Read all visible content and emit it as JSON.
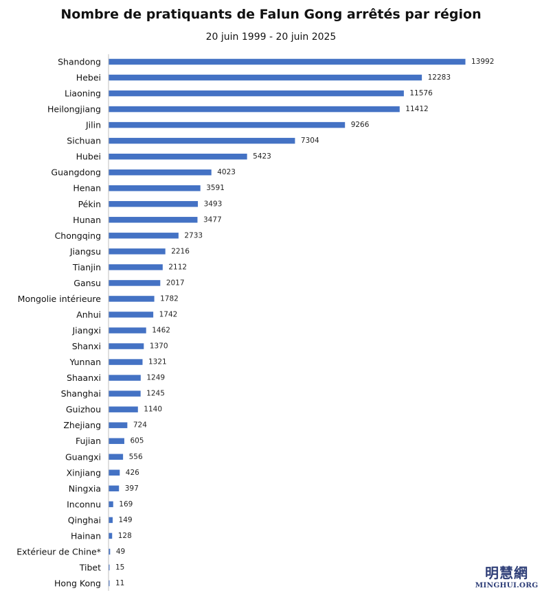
{
  "chart_data": {
    "type": "bar",
    "orientation": "horizontal",
    "title": "Nombre de pratiquants de Falun Gong arrêtés par région",
    "subtitle": "20 juin  1999 - 20 juin  2025",
    "categories": [
      "Shandong",
      "Hebei",
      "Liaoning",
      "Heilongjiang",
      "Jilin",
      "Sichuan",
      "Hubei",
      "Guangdong",
      "Henan",
      "Pékin",
      "Hunan",
      "Chongqing",
      "Jiangsu",
      "Tianjin",
      "Gansu",
      "Mongolie intérieure",
      "Anhui",
      "Jiangxi",
      "Shanxi",
      "Yunnan",
      "Shaanxi",
      "Shanghai",
      "Guizhou",
      "Zhejiang",
      "Fujian",
      "Guangxi",
      "Xinjiang",
      "Ningxia",
      "Inconnu",
      "Qinghai",
      "Hainan",
      "Extérieur de Chine*",
      "Tibet",
      "Hong Kong"
    ],
    "values": [
      13992,
      12283,
      11576,
      11412,
      9266,
      7304,
      5423,
      4023,
      3591,
      3493,
      3477,
      2733,
      2216,
      2112,
      2017,
      1782,
      1742,
      1462,
      1370,
      1321,
      1249,
      1245,
      1140,
      724,
      605,
      556,
      426,
      397,
      169,
      149,
      128,
      49,
      15,
      11
    ],
    "bar_color": "#4472c4",
    "axis_line_color": "#bfbfbf",
    "grid": false,
    "legend": "none",
    "xlim": [
      0,
      13992
    ]
  },
  "watermark": {
    "cjk": "明慧網",
    "site": "MINGHUI.ORG",
    "color": "#2f3f78"
  }
}
